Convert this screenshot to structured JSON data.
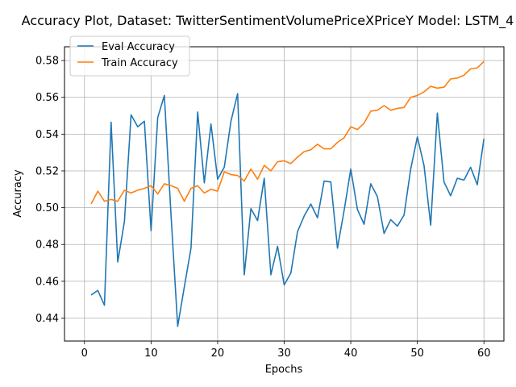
{
  "chart_data": {
    "type": "line",
    "title": "Accuracy Plot, Dataset: TwitterSentimentVolumePriceXPriceY Model: LSTM_4",
    "xlabel": "Epochs",
    "ylabel": "Accuracy",
    "xlim": [
      -3,
      63
    ],
    "ylim": [
      0.4275,
      0.5875
    ],
    "x_ticks": [
      0,
      10,
      20,
      30,
      40,
      50,
      60
    ],
    "y_ticks": [
      0.44,
      0.46,
      0.48,
      0.5,
      0.52,
      0.54,
      0.56,
      0.58
    ],
    "grid": true,
    "legend_position": "top-left",
    "x": [
      1,
      2,
      3,
      4,
      5,
      6,
      7,
      8,
      9,
      10,
      11,
      12,
      13,
      14,
      15,
      16,
      17,
      18,
      19,
      20,
      21,
      22,
      23,
      24,
      25,
      26,
      27,
      28,
      29,
      30,
      31,
      32,
      33,
      34,
      35,
      36,
      37,
      38,
      39,
      40,
      41,
      42,
      43,
      44,
      45,
      46,
      47,
      48,
      49,
      50,
      51,
      52,
      53,
      54,
      55,
      56,
      57,
      58,
      59,
      60
    ],
    "series": [
      {
        "name": "Eval Accuracy",
        "color": "#1f77b4",
        "values": [
          0.4525,
          0.455,
          0.447,
          0.5465,
          0.4705,
          0.4925,
          0.5505,
          0.544,
          0.547,
          0.4875,
          0.549,
          0.561,
          0.496,
          0.4355,
          0.457,
          0.478,
          0.552,
          0.5135,
          0.5455,
          0.5155,
          0.522,
          0.547,
          0.562,
          0.4635,
          0.4995,
          0.493,
          0.516,
          0.4635,
          0.479,
          0.458,
          0.4645,
          0.487,
          0.4955,
          0.502,
          0.4945,
          0.5145,
          0.514,
          0.478,
          0.4985,
          0.521,
          0.499,
          0.491,
          0.513,
          0.506,
          0.486,
          0.4935,
          0.49,
          0.496,
          0.521,
          0.5385,
          0.523,
          0.4905,
          0.5515,
          0.514,
          0.5065,
          0.516,
          0.515,
          0.522,
          0.5125,
          0.5375
        ]
      },
      {
        "name": "Train Accuracy",
        "color": "#ff7f0e",
        "values": [
          0.502,
          0.509,
          0.5035,
          0.5045,
          0.5035,
          0.5095,
          0.508,
          0.5095,
          0.5105,
          0.512,
          0.5075,
          0.513,
          0.512,
          0.5105,
          0.5035,
          0.5105,
          0.512,
          0.508,
          0.51,
          0.509,
          0.5195,
          0.518,
          0.5175,
          0.5145,
          0.521,
          0.5155,
          0.523,
          0.52,
          0.525,
          0.5255,
          0.524,
          0.5275,
          0.5305,
          0.5315,
          0.5345,
          0.532,
          0.532,
          0.5355,
          0.538,
          0.544,
          0.5425,
          0.546,
          0.5525,
          0.553,
          0.5555,
          0.553,
          0.554,
          0.5545,
          0.56,
          0.561,
          0.563,
          0.566,
          0.565,
          0.5655,
          0.57,
          0.5705,
          0.572,
          0.5755,
          0.576,
          0.5795
        ]
      }
    ]
  }
}
